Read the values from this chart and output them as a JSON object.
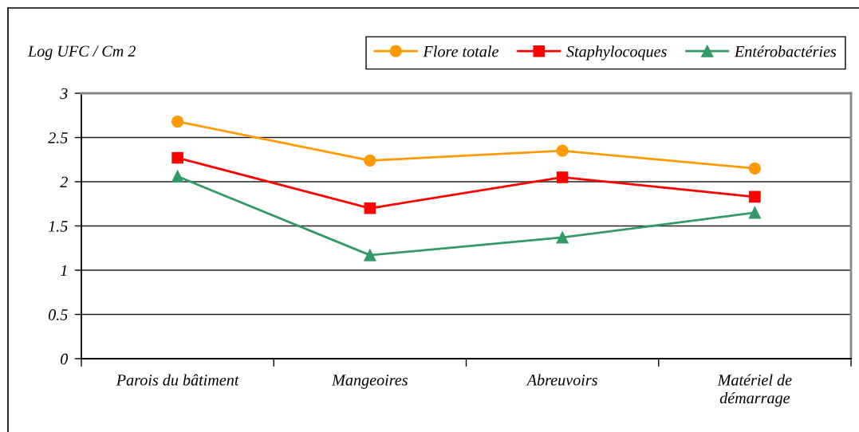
{
  "chart_data": {
    "type": "line",
    "ylabel": "Log UFC / Cm 2",
    "categories": [
      "Parois du bâtiment",
      "Mangeoires",
      "Abreuvoirs",
      "Matériel de\ndémarrage"
    ],
    "series": [
      {
        "name": "Flore totale",
        "color": "#ff9900",
        "marker": "circle",
        "values": [
          2.68,
          2.24,
          2.35,
          2.15
        ]
      },
      {
        "name": "Staphylocoques",
        "color": "#ff0000",
        "marker": "square",
        "values": [
          2.27,
          1.7,
          2.05,
          1.83
        ]
      },
      {
        "name": "Entérobactéries",
        "color": "#339966",
        "marker": "triangle",
        "values": [
          2.06,
          1.17,
          1.37,
          1.65
        ]
      }
    ],
    "ylim": [
      0,
      3
    ],
    "yticks": [
      0,
      0.5,
      1,
      1.5,
      2,
      2.5,
      3
    ],
    "grid": "y",
    "legend": "top right",
    "line_style": "solid"
  }
}
